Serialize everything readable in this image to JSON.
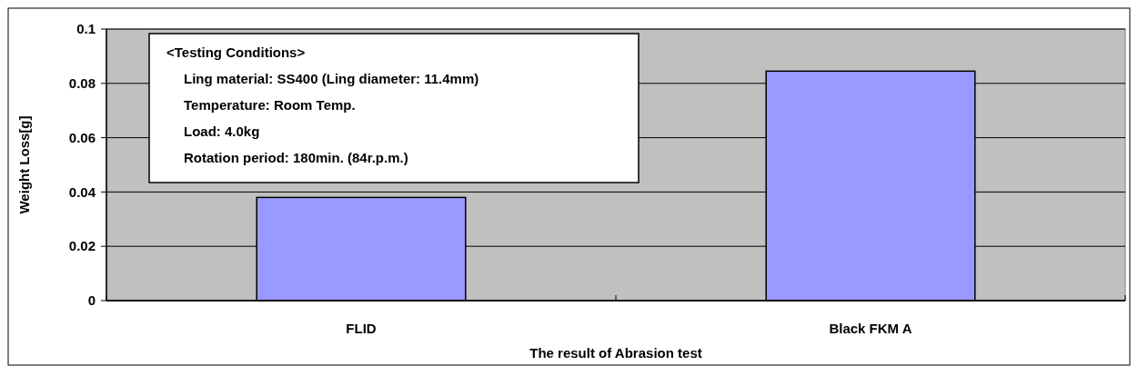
{
  "chart_data": {
    "type": "bar",
    "xlabel": "The result of Abrasion test",
    "ylabel": "Weight Loss[g]",
    "categories": [
      "FLID",
      "Black FKM A"
    ],
    "values": [
      0.038,
      0.0845
    ],
    "color": "#9999ff",
    "ylim": [
      0,
      0.1
    ],
    "yticks": [
      0,
      0.02,
      0.04,
      0.06,
      0.08,
      0.1
    ],
    "grid": "y",
    "annotations": [
      "<Testing Conditions>",
      "Ling material: SS400 (Ling diameter: 11.4mm)",
      "Temperature: Room Temp.",
      "Load: 4.0kg",
      "Rotation period: 180min. (84r.p.m.)"
    ]
  }
}
